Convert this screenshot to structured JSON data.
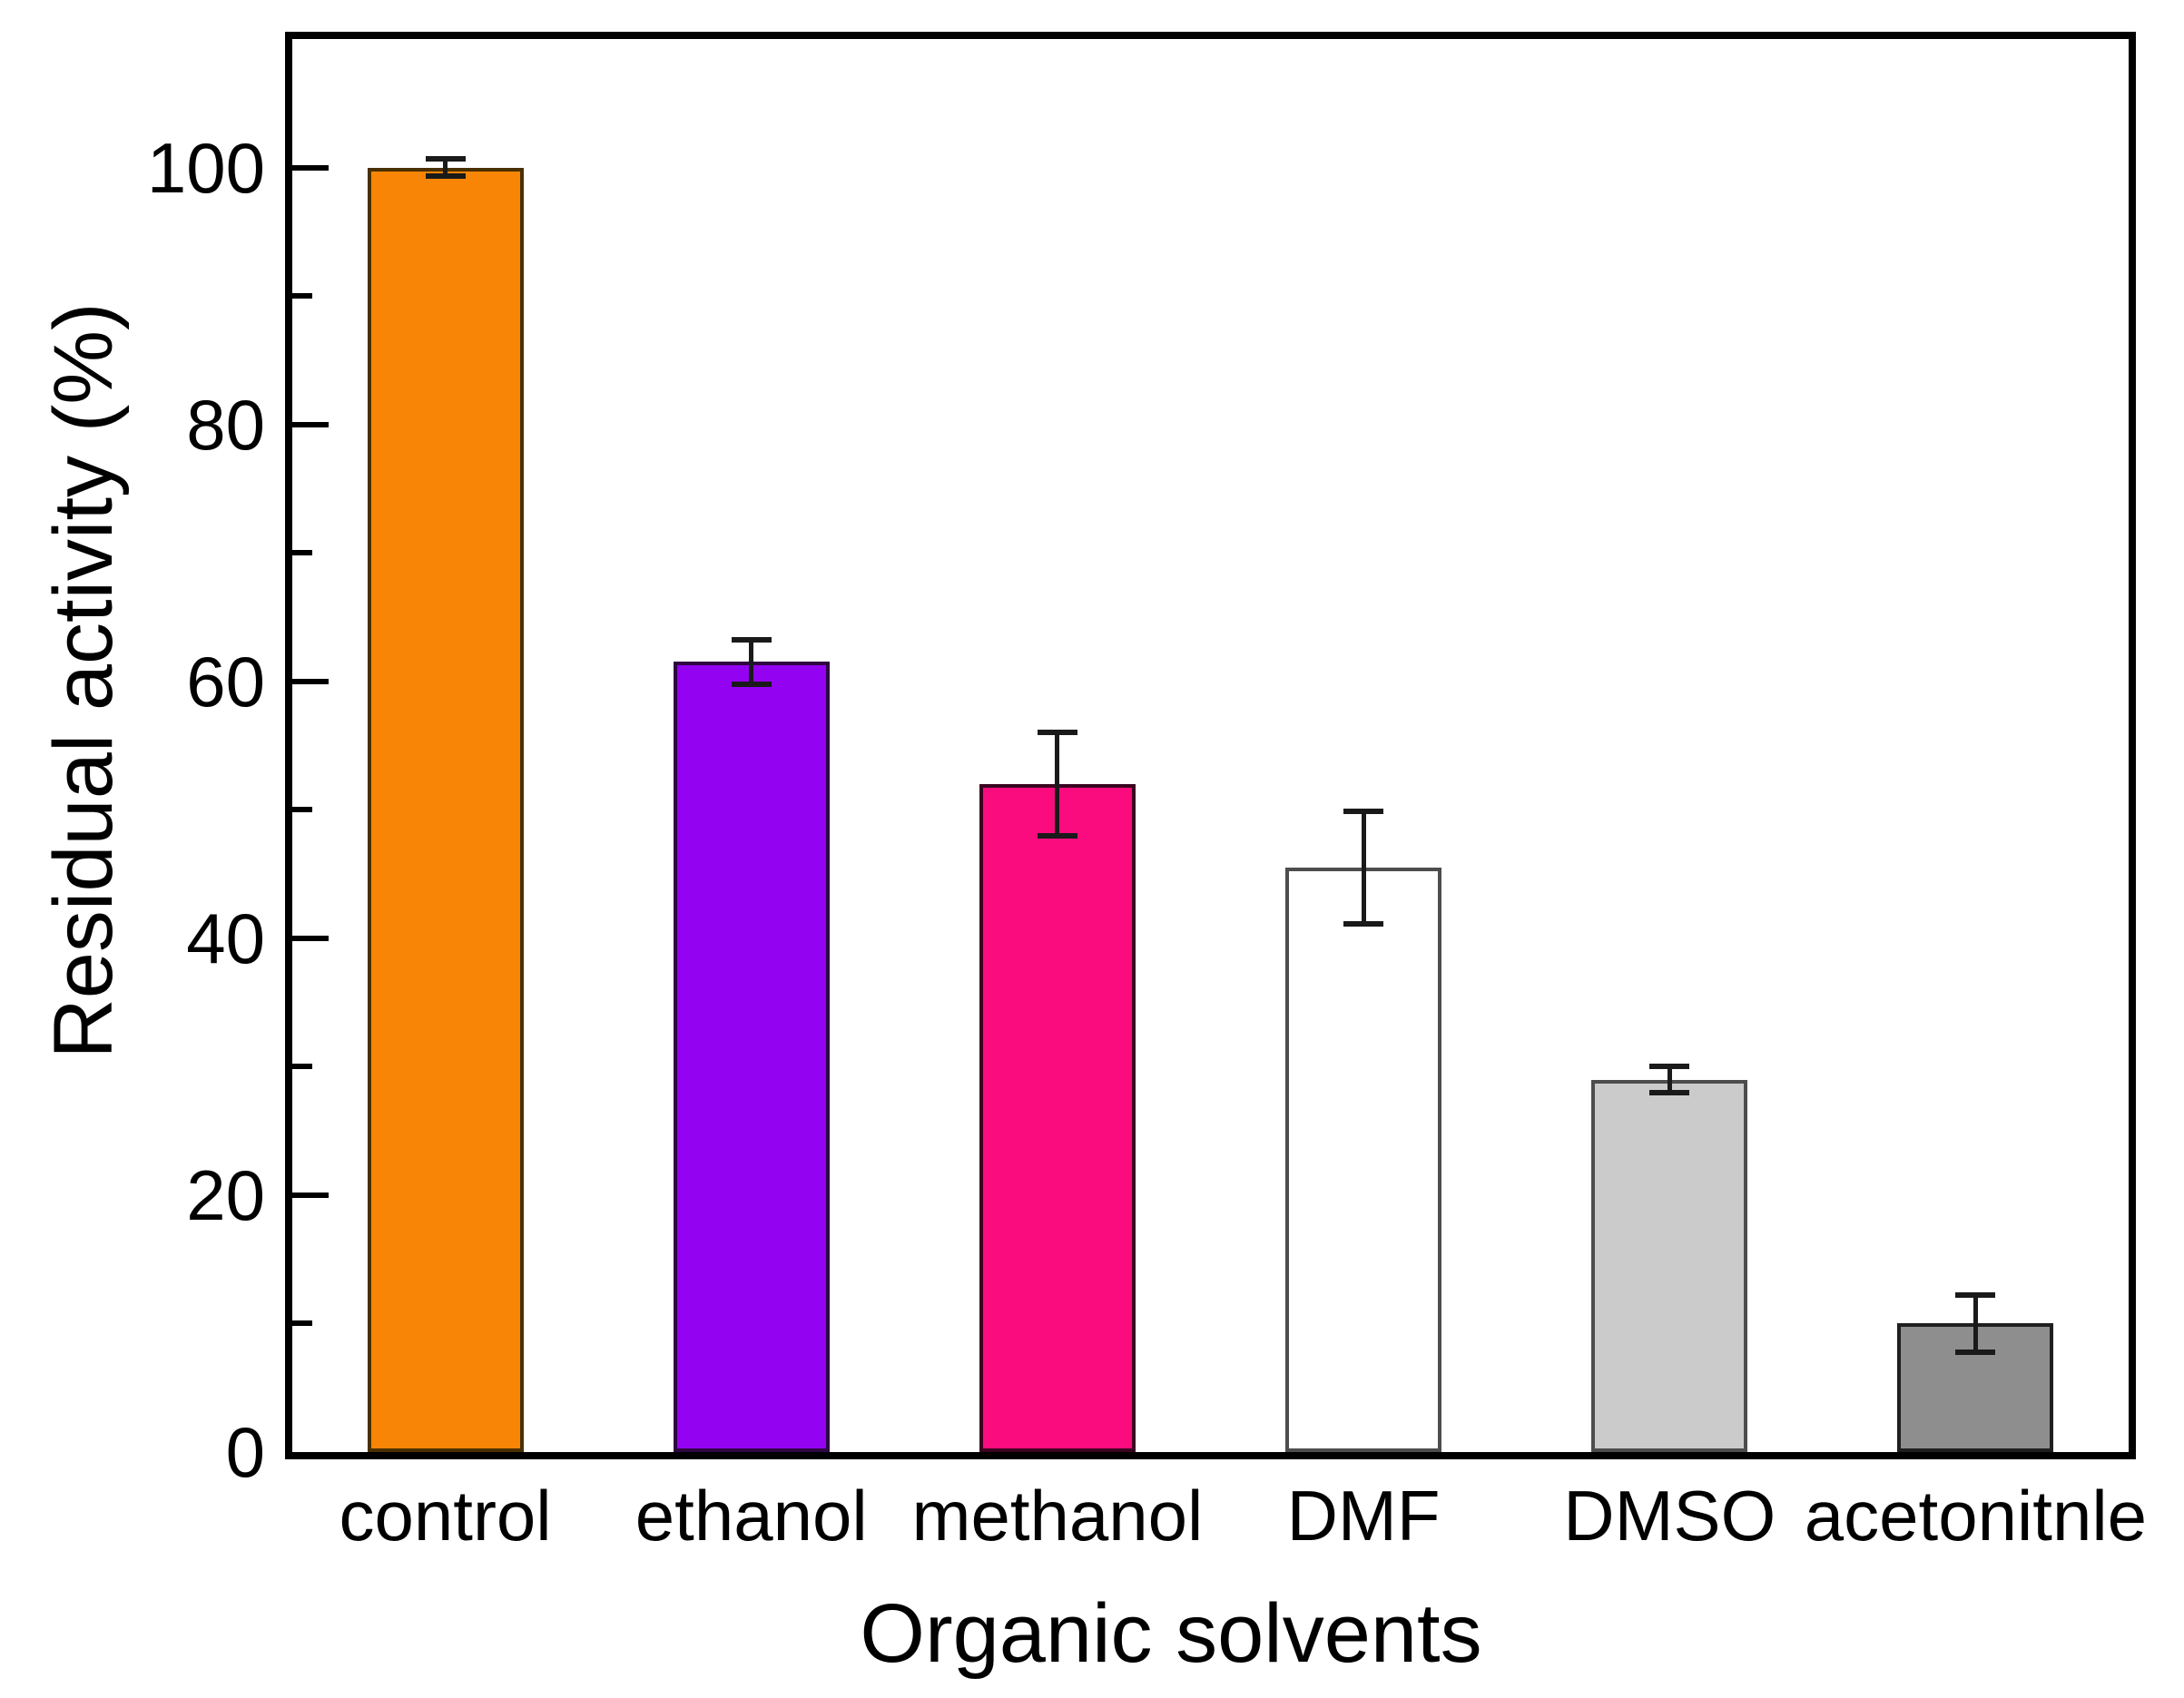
{
  "figure": {
    "background": "#FFFFFF",
    "frame_color": "#000000"
  },
  "chart_data": {
    "type": "bar",
    "title": "",
    "xlabel": "Organic solvents",
    "ylabel": "Residual activity (%)",
    "categories": [
      "control",
      "ethanol",
      "methanol",
      "DMF",
      "DMSO",
      "acetonitnle"
    ],
    "values": [
      100,
      61.5,
      52,
      45.5,
      29,
      10
    ],
    "errors": [
      0.7,
      1.7,
      4.0,
      4.4,
      1.0,
      2.2
    ],
    "bar_fill_colors": [
      "#F98506",
      "#9303F2",
      "#FA0C7E",
      "#FFFFFF",
      "#CBCBCB",
      "#8E8E8E"
    ],
    "bar_border_colors": [
      "#4A3000",
      "#2E0640",
      "#3B0520",
      "#4D4D4D",
      "#4D4D4D",
      "#1F1F1F"
    ],
    "error_bar_color": "#1A1A1A",
    "axis_color": "#000000",
    "text_color": "#000000",
    "ylim": [
      0,
      110
    ],
    "yticks_major": [
      0,
      20,
      40,
      60,
      80,
      100
    ],
    "yticks_minor": [
      10,
      30,
      50,
      70,
      90
    ],
    "grid": false,
    "legend": "none",
    "bar_width_fraction": 0.51
  }
}
